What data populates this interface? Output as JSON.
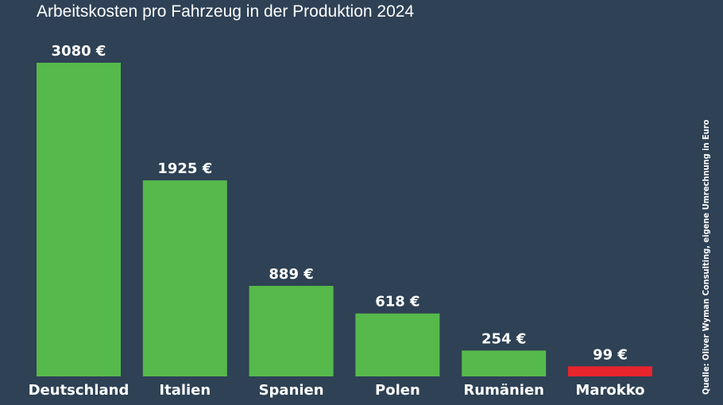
{
  "chart_data": {
    "type": "bar",
    "title": "Arbeitskosten pro Fahrzeug in der Produktion 2024",
    "categories": [
      "Deutschland",
      "Italien",
      "Spanien",
      "Polen",
      "Rumänien",
      "Marokko"
    ],
    "values": [
      3080,
      1925,
      889,
      618,
      254,
      99
    ],
    "value_labels": [
      "3080 €",
      "1925 €",
      "889 €",
      "618 €",
      "254 €",
      "99 €"
    ],
    "bar_colors": [
      "#56b94b",
      "#56b94b",
      "#56b94b",
      "#56b94b",
      "#56b94b",
      "#e8242d"
    ],
    "ylim": [
      0,
      3080
    ],
    "grid": false,
    "source": "Quelle: Oliver Wyman Consulting, eigene Umrechnung in Euro"
  },
  "colors": {
    "background": "#2e4155",
    "bar": "#56b94b",
    "highlight": "#e8242d",
    "text": "#ffffff"
  }
}
